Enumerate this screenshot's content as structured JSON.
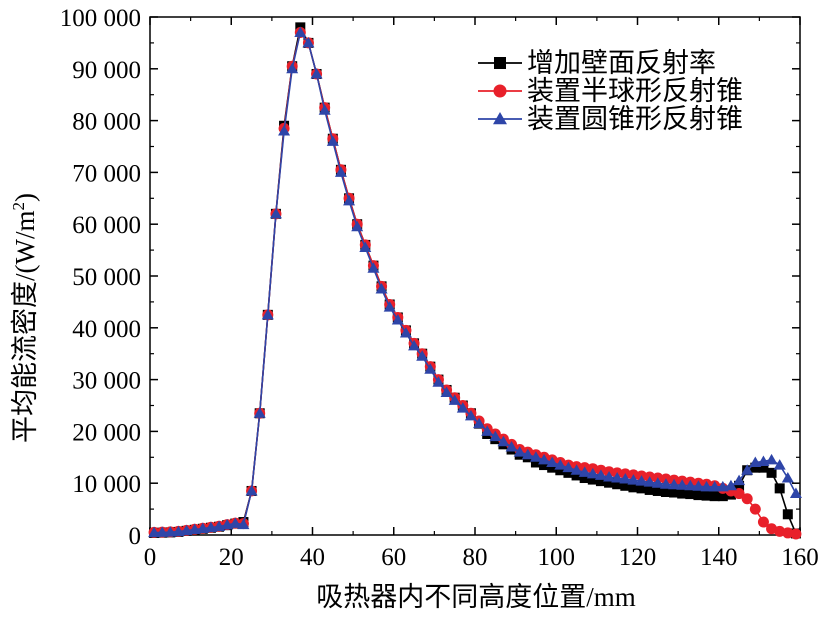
{
  "chart_data": {
    "type": "line",
    "xlabel": "吸热器内不同高度位置/mm",
    "ylabel": "平均能流密度/(W/m²)",
    "ylabel_parts": {
      "main": "平均能流密度/(W/m",
      "sup": "2",
      "close": ")"
    },
    "xlim": [
      0,
      160
    ],
    "ylim": [
      0,
      100000
    ],
    "x_ticks": [
      0,
      20,
      40,
      60,
      80,
      100,
      120,
      140,
      160
    ],
    "x_tick_labels": [
      "0",
      "20",
      "40",
      "60",
      "80",
      "100",
      "120",
      "140",
      "160"
    ],
    "y_ticks": [
      0,
      10000,
      20000,
      30000,
      40000,
      50000,
      60000,
      70000,
      80000,
      90000,
      100000
    ],
    "y_tick_labels": [
      "0",
      "10 000",
      "20 000",
      "30 000",
      "40 000",
      "50 000",
      "60 000",
      "70 000",
      "80 000",
      "90 000",
      "100 000"
    ],
    "grid": false,
    "legend_position": "top-right",
    "x": [
      1,
      3,
      5,
      7,
      9,
      11,
      13,
      15,
      17,
      19,
      21,
      23,
      25,
      27,
      29,
      31,
      33,
      35,
      37,
      39,
      41,
      43,
      45,
      47,
      49,
      51,
      53,
      55,
      57,
      59,
      61,
      63,
      65,
      67,
      69,
      71,
      73,
      75,
      77,
      79,
      81,
      83,
      85,
      87,
      89,
      91,
      93,
      95,
      97,
      99,
      101,
      103,
      105,
      107,
      109,
      111,
      113,
      115,
      117,
      119,
      121,
      123,
      125,
      127,
      129,
      131,
      133,
      135,
      137,
      139,
      141,
      143,
      145,
      147,
      149,
      151,
      153,
      155,
      157,
      159
    ],
    "series": [
      {
        "name": "增加壁面反射率",
        "color": "#000000",
        "marker": "square",
        "values": [
          400,
          450,
          500,
          600,
          800,
          1000,
          1200,
          1400,
          1600,
          1900,
          2200,
          2500,
          8500,
          23500,
          42500,
          62000,
          79000,
          90500,
          98000,
          95000,
          89000,
          82500,
          76500,
          70500,
          65000,
          60000,
          56000,
          52000,
          48000,
          44500,
          42000,
          39500,
          37000,
          35000,
          32500,
          30000,
          28000,
          26500,
          25000,
          23500,
          21500,
          19500,
          18500,
          17500,
          16500,
          15500,
          15000,
          14000,
          13500,
          13000,
          12500,
          12000,
          11500,
          11000,
          10700,
          10400,
          10100,
          9800,
          9500,
          9200,
          9000,
          8700,
          8500,
          8300,
          8200,
          8000,
          7900,
          7700,
          7600,
          7500,
          7500,
          7800,
          9500,
          12500,
          13000,
          13000,
          12000,
          9000,
          4000,
          300
        ]
      },
      {
        "name": "装置半球形反射锥",
        "color": "#e8202a",
        "marker": "circle",
        "values": [
          500,
          550,
          600,
          700,
          900,
          1100,
          1300,
          1500,
          1700,
          2000,
          2300,
          2200,
          8500,
          23500,
          42500,
          62000,
          78500,
          90500,
          97000,
          95000,
          89000,
          82500,
          76500,
          70500,
          65000,
          60000,
          56000,
          52000,
          48000,
          44500,
          42000,
          39500,
          37000,
          35000,
          32500,
          30000,
          28000,
          26500,
          25000,
          23500,
          22000,
          20500,
          19500,
          18500,
          17500,
          16500,
          16000,
          15500,
          15000,
          14500,
          14000,
          13500,
          13200,
          13000,
          12800,
          12500,
          12200,
          12000,
          11800,
          11600,
          11400,
          11200,
          11000,
          10800,
          10600,
          10400,
          10200,
          10000,
          9800,
          9500,
          9000,
          8500,
          8000,
          7000,
          5000,
          2500,
          1200,
          700,
          400,
          200
        ]
      },
      {
        "name": "装置圆锥形反射锥",
        "color": "#2e45a8",
        "marker": "triangle",
        "values": [
          450,
          500,
          550,
          650,
          850,
          1050,
          1250,
          1450,
          1650,
          1950,
          2250,
          2000,
          8500,
          23500,
          42500,
          62000,
          78000,
          90000,
          97000,
          95000,
          89000,
          82000,
          76000,
          70000,
          64500,
          59500,
          55500,
          51500,
          47500,
          44000,
          41500,
          39000,
          36500,
          34500,
          32000,
          29500,
          27500,
          26000,
          24500,
          23000,
          21500,
          20000,
          19000,
          18000,
          17000,
          16000,
          15500,
          15000,
          14500,
          14000,
          13500,
          13000,
          12500,
          12100,
          11800,
          11500,
          11200,
          11000,
          10800,
          10600,
          10400,
          10200,
          10000,
          9800,
          9700,
          9600,
          9500,
          9400,
          9300,
          9300,
          9300,
          9500,
          10500,
          12500,
          14000,
          14200,
          14500,
          13500,
          11000,
          8000
        ]
      }
    ]
  }
}
